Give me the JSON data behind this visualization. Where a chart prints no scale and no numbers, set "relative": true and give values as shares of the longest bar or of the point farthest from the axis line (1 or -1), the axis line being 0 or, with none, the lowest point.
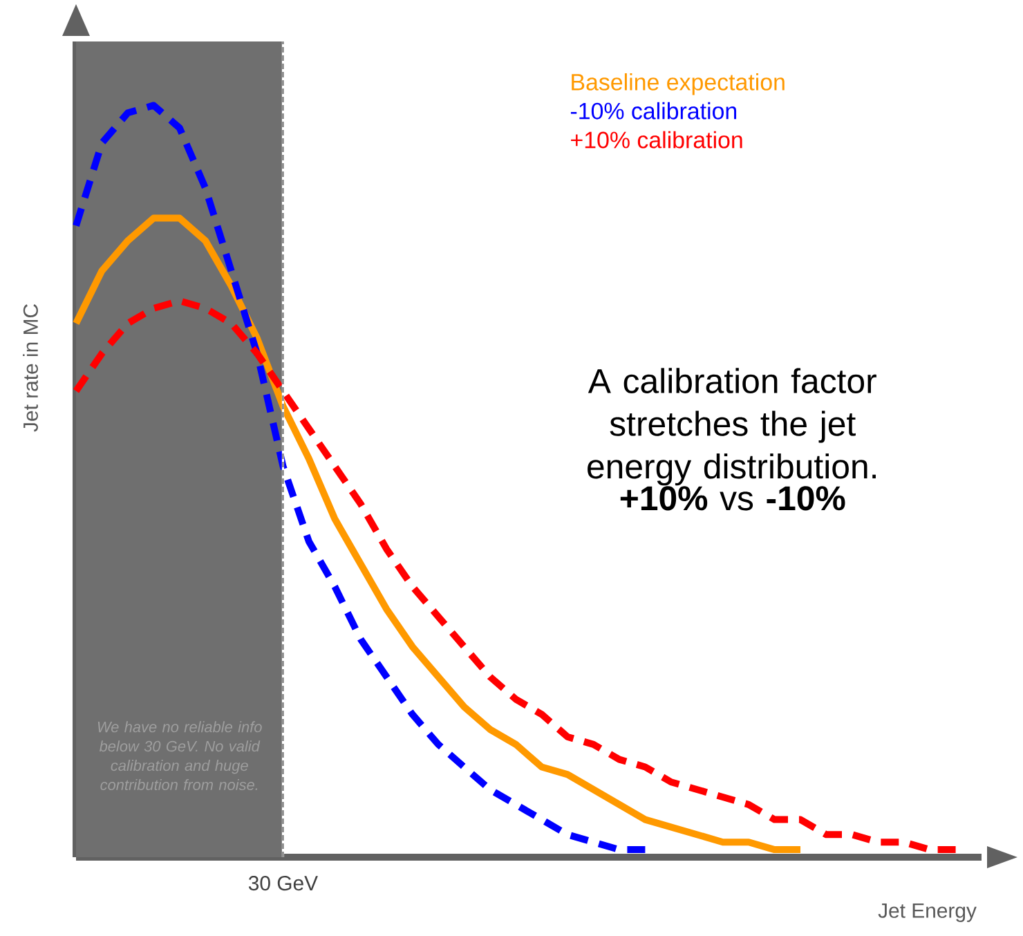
{
  "chart_data": {
    "type": "line",
    "relative": true,
    "xlabel": "Jet Energy",
    "ylabel": "Jet rate in MC",
    "categories": [
      null,
      null,
      null,
      null,
      null,
      null,
      null,
      null,
      null,
      null,
      null,
      null,
      null,
      null,
      null,
      null,
      null,
      null,
      null,
      null,
      null,
      null,
      null,
      null,
      null,
      null,
      null,
      null,
      null,
      null,
      null,
      null,
      null,
      null,
      null
    ],
    "series": [
      {
        "name": "Baseline expectation",
        "color": "#ff9900",
        "line_style": "solid",
        "values": [
          0.71,
          0.78,
          0.82,
          0.85,
          0.85,
          0.82,
          0.76,
          0.69,
          0.6,
          0.53,
          0.45,
          0.39,
          0.33,
          0.28,
          0.24,
          0.2,
          0.17,
          0.15,
          0.12,
          0.11,
          0.09,
          0.07,
          0.05,
          0.04,
          0.03,
          0.02,
          0.02,
          0.01,
          0.01,
          null,
          null,
          null,
          null,
          null,
          null
        ]
      },
      {
        "name": "-10% calibration",
        "color": "#0000ff",
        "line_style": "dashed",
        "values": [
          0.84,
          0.95,
          0.99,
          1.0,
          0.97,
          0.89,
          0.78,
          0.67,
          0.52,
          0.42,
          0.36,
          0.29,
          0.24,
          0.19,
          0.15,
          0.12,
          0.09,
          0.07,
          0.05,
          0.03,
          0.02,
          0.01,
          0.01,
          null,
          null,
          null,
          null,
          null,
          null,
          null,
          null,
          null,
          null,
          null,
          null
        ]
      },
      {
        "name": "+10% calibration",
        "color": "#ff0000",
        "line_style": "dashed",
        "values": [
          0.62,
          0.67,
          0.71,
          0.73,
          0.74,
          0.73,
          0.71,
          0.67,
          0.62,
          0.57,
          0.52,
          0.47,
          0.41,
          0.36,
          0.32,
          0.28,
          0.24,
          0.21,
          0.19,
          0.16,
          0.15,
          0.13,
          0.12,
          0.1,
          0.09,
          0.08,
          0.07,
          0.05,
          0.05,
          0.03,
          0.03,
          0.02,
          0.02,
          0.01,
          0.01
        ]
      }
    ],
    "annotations": [
      "A calibration factor stretches the jet energy distribution.",
      "**+10%** vs **-10%**",
      "We have no reliable info below 30 GeV. No valid calibration and huge contribution from noise.",
      "30 GeV"
    ]
  }
}
